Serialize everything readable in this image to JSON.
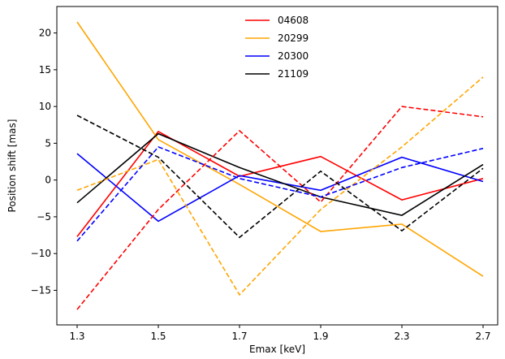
{
  "chart_data": {
    "type": "line",
    "categories": [
      "1.3",
      "1.5",
      "1.7",
      "1.9",
      "2.3",
      "2.7"
    ],
    "xlabel": "Emax [keV]",
    "ylabel": "Position shift [mas]",
    "ylim": [
      -19.7,
      23.6
    ],
    "yticks": [
      -15,
      -10,
      -5,
      0,
      5,
      10,
      15,
      20
    ],
    "yticklabels": [
      "−15",
      "−10",
      "−5",
      "0",
      "5",
      "10",
      "15",
      "20"
    ],
    "grid": false,
    "legend": "upper-center",
    "series": [
      {
        "name": "04608",
        "color": "#ff0000",
        "style": "solid",
        "values": [
          -7.7,
          6.6,
          0.5,
          3.2,
          -2.7,
          0.2
        ]
      },
      {
        "name": "20299",
        "color": "#ffa500",
        "style": "solid",
        "values": [
          21.5,
          5.5,
          -0.6,
          -7.0,
          -6.0,
          -13.1
        ]
      },
      {
        "name": "20300",
        "color": "#0000ff",
        "style": "solid",
        "values": [
          3.6,
          -5.6,
          0.6,
          -1.4,
          3.1,
          -0.2
        ]
      },
      {
        "name": "21109",
        "color": "#000000",
        "style": "solid",
        "values": [
          -3.1,
          6.3,
          1.7,
          -2.3,
          -4.8,
          2.1
        ]
      },
      {
        "color": "#ff0000",
        "style": "dashed",
        "values": [
          -17.6,
          -4.0,
          6.7,
          -3.0,
          10.0,
          8.6
        ]
      },
      {
        "color": "#ffa500",
        "style": "dashed",
        "values": [
          -1.4,
          2.8,
          -15.6,
          -4.0,
          4.5,
          14.0
        ]
      },
      {
        "color": "#0000ff",
        "style": "dashed",
        "values": [
          -8.3,
          4.5,
          0.2,
          -2.3,
          1.7,
          4.3
        ]
      },
      {
        "color": "#000000",
        "style": "dashed",
        "values": [
          8.8,
          3.1,
          -7.8,
          1.2,
          -6.9,
          1.6
        ]
      }
    ]
  }
}
